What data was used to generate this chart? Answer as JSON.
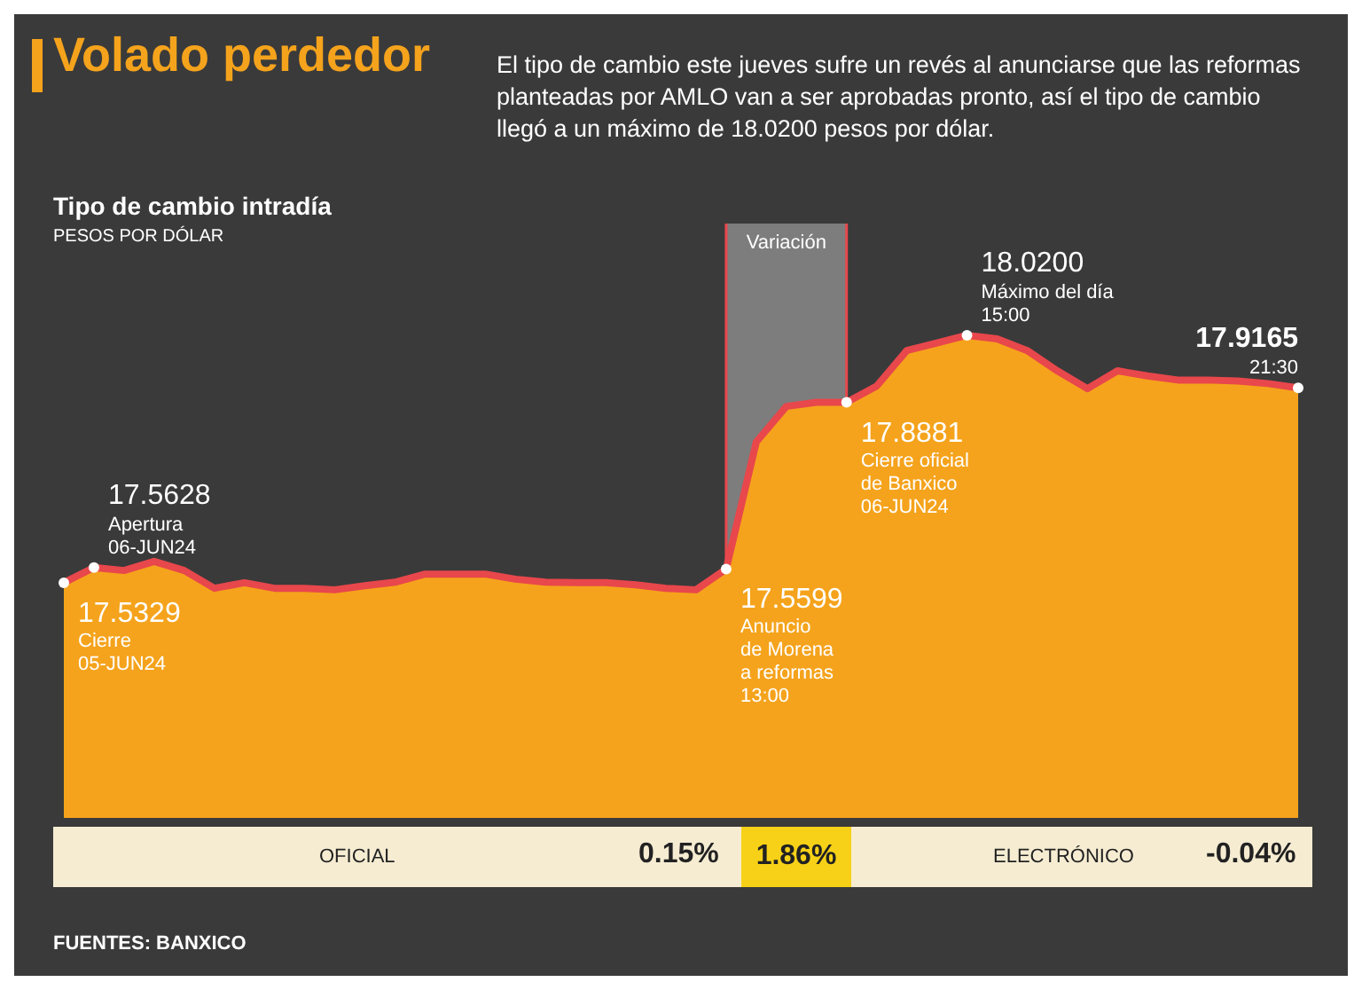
{
  "chart_data": {
    "type": "area",
    "title": "Volado perdedor",
    "subtitle": "El tipo de cambio este jueves sufre un revés al anunciarse que las reformas planteadas por AMLO van a ser aprobadas pronto, así el tipo de cambio llegó a un máximo de 18.0200 pesos por dólar.",
    "ylabel": "PESOS POR DÓLAR",
    "legend_title": "Tipo de cambio intradía",
    "categories": [
      null,
      null,
      null,
      null,
      null,
      null,
      null,
      null,
      null,
      null,
      null,
      null,
      null,
      null,
      null,
      null,
      null,
      null,
      null,
      null,
      null,
      null,
      null,
      null,
      null,
      null,
      null,
      null,
      null,
      null,
      null,
      null,
      null,
      null,
      null,
      null,
      null,
      null,
      null,
      null,
      null,
      null
    ],
    "series": [
      {
        "color": "#f5a31c",
        "values": [
          17.5329,
          17.5628,
          17.557,
          17.575,
          17.557,
          17.522,
          17.533,
          17.522,
          17.522,
          17.519,
          17.527,
          17.534,
          17.55,
          17.55,
          17.55,
          17.54,
          17.534,
          17.533,
          17.533,
          17.529,
          17.522,
          17.519,
          17.5599,
          17.81,
          17.88,
          17.888,
          17.8881,
          17.92,
          17.99,
          18.005,
          18.02,
          18.013,
          17.99,
          17.95,
          17.915,
          17.95,
          17.94,
          17.932,
          17.932,
          17.93,
          17.925,
          17.9165
        ],
        "value_labels": [
          "17.5329",
          "17.5628",
          null,
          null,
          null,
          null,
          null,
          null,
          null,
          null,
          null,
          null,
          null,
          null,
          null,
          null,
          null,
          null,
          null,
          null,
          null,
          null,
          "17.5599",
          null,
          null,
          null,
          "17.8881",
          null,
          null,
          null,
          "18.0200",
          null,
          null,
          null,
          null,
          null,
          null,
          null,
          null,
          null,
          null,
          "17.9165"
        ]
      }
    ],
    "ylim": [
      17.07,
      18.24
    ],
    "annotations": [
      "Cierre\n05-JUN24",
      "Apertura\n06-JUN24",
      "Anuncio\nde Morena\na reformas\n13:00",
      "Cierre oficial\nde Banxico\n06-JUN24",
      "Máximo del día\n15:00",
      "21:30",
      "Variación",
      "OFICIAL",
      "0.15%",
      "1.86%",
      "ELECTRÓNICO",
      "-0.04%",
      "FUENTES: BANXICO"
    ]
  }
}
